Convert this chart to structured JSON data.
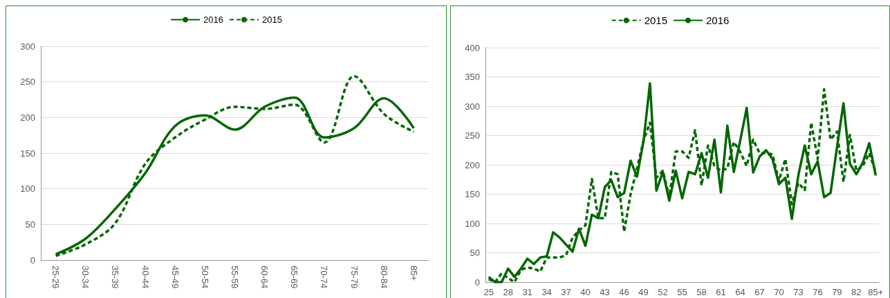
{
  "chart_data": [
    {
      "type": "line",
      "categories": [
        "25-29",
        "30-34",
        "35-39",
        "40-44",
        "45-49",
        "50-54",
        "55-59",
        "60-64",
        "65-69",
        "70-74",
        "75-79",
        "80-84",
        "85+"
      ],
      "ylim": [
        0,
        300
      ],
      "yticks": [
        0,
        50,
        100,
        150,
        200,
        250,
        300
      ],
      "grid": "y",
      "legend": "top",
      "marker": "none",
      "series": [
        {
          "name": "2016",
          "color": "#006600",
          "line_style": "solid",
          "values": [
            8,
            30,
            72,
            122,
            188,
            203,
            183,
            215,
            228,
            172,
            185,
            227,
            185
          ]
        },
        {
          "name": "2015",
          "color": "#006600",
          "line_style": "dashed",
          "values": [
            6,
            22,
            52,
            135,
            172,
            197,
            215,
            212,
            218,
            165,
            258,
            205,
            180
          ]
        }
      ]
    },
    {
      "type": "line",
      "categories": [
        "25",
        null,
        null,
        "28",
        null,
        null,
        "31",
        null,
        null,
        "34",
        null,
        null,
        "37",
        null,
        null,
        "40",
        null,
        null,
        "43",
        null,
        null,
        "46",
        null,
        null,
        "49",
        null,
        null,
        "52",
        null,
        null,
        "55",
        null,
        null,
        "58",
        null,
        null,
        "61",
        null,
        null,
        "64",
        null,
        null,
        "67",
        null,
        null,
        "70",
        null,
        null,
        "73",
        null,
        null,
        "76",
        null,
        null,
        "79",
        null,
        null,
        "82",
        null,
        null,
        "85+"
      ],
      "ylim": [
        0,
        400
      ],
      "yticks": [
        0,
        50,
        100,
        150,
        200,
        250,
        300,
        350,
        400
      ],
      "grid": "y",
      "legend": "top",
      "marker": "none",
      "series": [
        {
          "name": "2015",
          "color": "#006600",
          "line_style": "dashed",
          "values": [
            5,
            0,
            15,
            7,
            0,
            21,
            25,
            23,
            18,
            42,
            42,
            42,
            46,
            76,
            88,
            97,
            176,
            109,
            109,
            188,
            184,
            86,
            150,
            194,
            241,
            272,
            178,
            190,
            145,
            223,
            223,
            212,
            259,
            165,
            233,
            198,
            190,
            194,
            239,
            222,
            198,
            243,
            220,
            220,
            218,
            173,
            210,
            133,
            169,
            157,
            272,
            210,
            329,
            243,
            257,
            171,
            251,
            190,
            198,
            220,
            188
          ]
        },
        {
          "name": "2016",
          "color": "#006600",
          "line_style": "solid",
          "values": [
            9,
            0,
            0,
            23,
            9,
            23,
            40,
            31,
            42,
            44,
            85,
            76,
            64,
            52,
            91,
            62,
            115,
            109,
            162,
            174,
            145,
            152,
            207,
            180,
            240,
            339,
            156,
            188,
            139,
            190,
            143,
            188,
            184,
            220,
            178,
            243,
            153,
            267,
            188,
            242,
            297,
            187,
            214,
            225,
            210,
            167,
            178,
            108,
            182,
            233,
            184,
            206,
            145,
            152,
            230,
            305,
            202,
            184,
            204,
            237,
            182
          ]
        }
      ]
    }
  ]
}
